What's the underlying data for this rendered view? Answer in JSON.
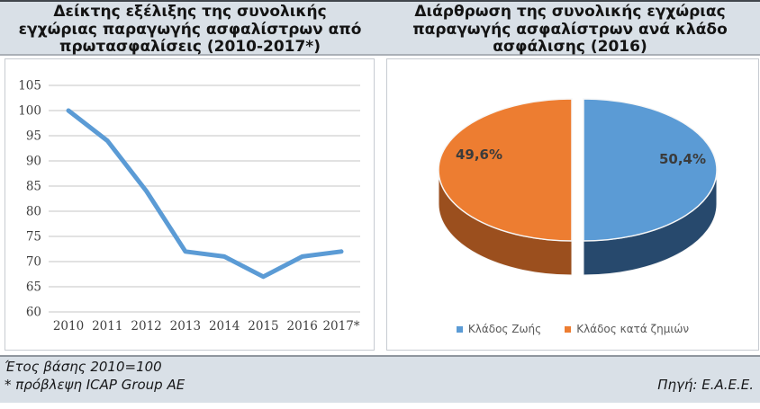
{
  "footer": {
    "note_line1": "Έτος βάσης 2010=100",
    "note_line2": "* πρόβλεψη ICAP Group AE",
    "source": "Πηγή: Ε.Α.Ε.Ε."
  },
  "chart_data": [
    {
      "type": "line",
      "title": "Δείκτης εξέλιξης της συνολικής εγχώριας παραγωγής ασφαλίστρων από πρωτασφαλίσεις (2010-2017*)",
      "categories": [
        "2010",
        "2011",
        "2012",
        "2013",
        "2014",
        "2015",
        "2016",
        "2017*"
      ],
      "values": [
        100,
        94,
        84,
        72,
        71,
        67,
        71,
        72
      ],
      "yticks": [
        105,
        100,
        95,
        90,
        85,
        80,
        75,
        70,
        65,
        60
      ],
      "ylim": [
        60,
        105
      ],
      "line_color": "#5B9BD5",
      "grid_color": "#d9d9d9",
      "grid": true,
      "legend": "none",
      "note": "Έτος βάσης 2010=100"
    },
    {
      "type": "pie",
      "title": "Διάρθρωση της συνολικής εγχώριας παραγωγής ασφαλίστρων ανά κλάδο ασφάλισης (2016)",
      "style": "3d-exploded",
      "slices": [
        {
          "label": "Κλάδος Ζωής",
          "value_pct": 50.4,
          "display": "50,4%",
          "color": "#5B9BD5",
          "side_color": "#27496D"
        },
        {
          "label": "Κλάδος κατά ζημιών",
          "value_pct": 49.6,
          "display": "49,6%",
          "color": "#ED7D31",
          "side_color": "#9B4F1E"
        }
      ],
      "legend_position": "bottom"
    }
  ]
}
